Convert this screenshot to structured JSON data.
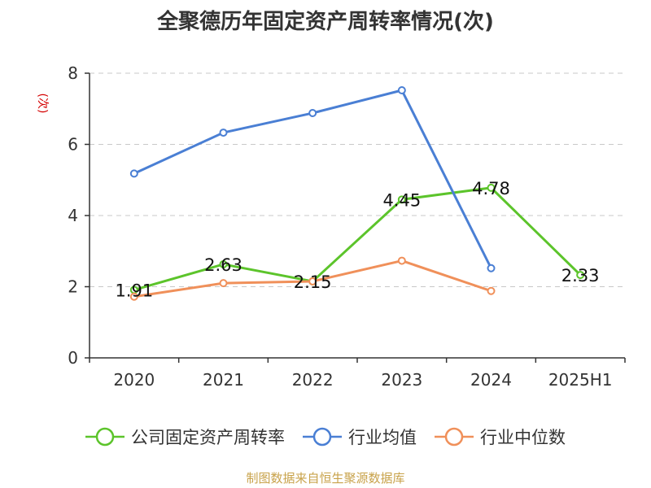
{
  "chart_data": {
    "type": "line",
    "title": "全聚德历年固定资产周转率情况(次)",
    "ylabel": "(次)",
    "xlabel": "",
    "categories": [
      "2020",
      "2021",
      "2022",
      "2023",
      "2024",
      "2025H1"
    ],
    "ylim": [
      0,
      8
    ],
    "yticks": [
      0,
      2,
      4,
      6,
      8
    ],
    "grid": true,
    "legend_position": "bottom",
    "series": [
      {
        "name": "公司固定资产周转率",
        "color": "#5cc42b",
        "values": [
          1.91,
          2.63,
          2.15,
          4.45,
          4.78,
          2.33
        ],
        "show_labels": true
      },
      {
        "name": "行业均值",
        "color": "#4a7fd4",
        "values": [
          5.18,
          6.33,
          6.88,
          7.52,
          2.52,
          null
        ],
        "show_labels": false
      },
      {
        "name": "行业中位数",
        "color": "#f0905a",
        "values": [
          1.72,
          2.1,
          2.15,
          2.73,
          1.88,
          null
        ],
        "show_labels": false
      }
    ]
  },
  "footer": {
    "source": "制图数据来自恒生聚源数据库"
  }
}
